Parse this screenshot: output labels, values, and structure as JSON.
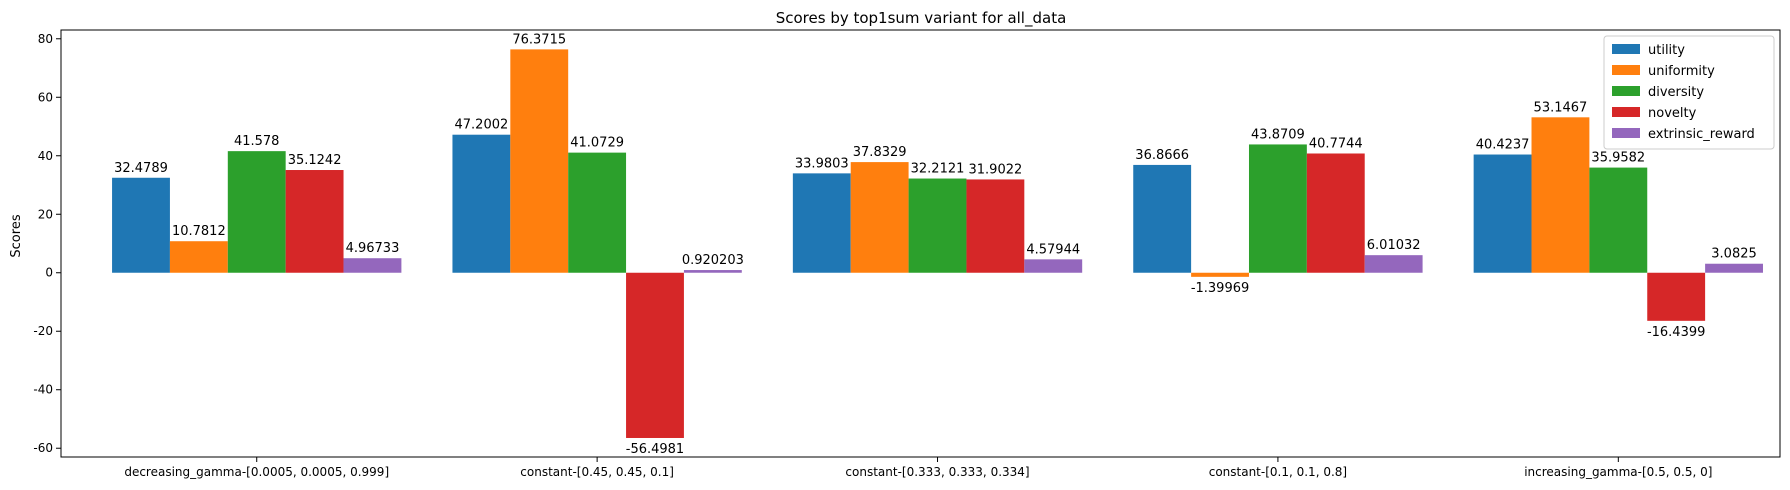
{
  "chart_data": {
    "type": "bar",
    "title": "Scores by top1sum variant for all_data",
    "xlabel": "",
    "ylabel": "Scores",
    "ylim": [
      -63,
      83
    ],
    "yticks": [
      -60,
      -40,
      -20,
      0,
      20,
      40,
      60,
      80
    ],
    "legend_position": "top-right",
    "grid": false,
    "categories": [
      "decreasing_gamma-[0.0005, 0.0005, 0.999]",
      "constant-[0.45, 0.45, 0.1]",
      "constant-[0.333, 0.333, 0.334]",
      "constant-[0.1, 0.1, 0.8]",
      "increasing_gamma-[0.5, 0.5, 0]"
    ],
    "series": [
      {
        "name": "utility",
        "color": "#1f77b4",
        "values": [
          32.4789,
          47.2002,
          33.9803,
          36.8666,
          40.4237
        ],
        "labels": [
          "32.4789",
          "47.2002",
          "33.9803",
          "36.8666",
          "40.4237"
        ]
      },
      {
        "name": "uniformity",
        "color": "#ff7f0e",
        "values": [
          10.7812,
          76.3715,
          37.8329,
          -1.39969,
          53.1467
        ],
        "labels": [
          "10.7812",
          "76.3715",
          "37.8329",
          "-1.39969",
          "53.1467"
        ]
      },
      {
        "name": "diversity",
        "color": "#2ca02c",
        "values": [
          41.578,
          41.0729,
          32.2121,
          43.8709,
          35.9582
        ],
        "labels": [
          "41.578",
          "41.0729",
          "32.2121",
          "43.8709",
          "35.9582"
        ]
      },
      {
        "name": "novelty",
        "color": "#d62728",
        "values": [
          35.1242,
          -56.4981,
          31.9022,
          40.7744,
          -16.4399
        ],
        "labels": [
          "35.1242",
          "-56.4981",
          "31.9022",
          "40.7744",
          "-16.4399"
        ]
      },
      {
        "name": "extrinsic_reward",
        "color": "#9467bd",
        "values": [
          4.96733,
          0.920203,
          4.57944,
          6.01032,
          3.0825
        ],
        "labels": [
          "4.96733",
          "0.920203",
          "4.57944",
          "6.01032",
          "3.0825"
        ]
      }
    ]
  }
}
